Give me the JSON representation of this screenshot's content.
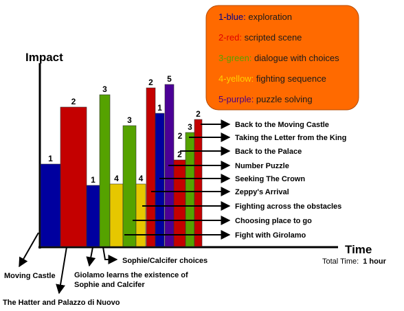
{
  "chart_data": {
    "type": "bar",
    "ylabel": "Impact",
    "xlabel": "Time",
    "total_time": {
      "label": "Total Time:",
      "value": "1 hour"
    },
    "ylim": [
      0,
      6
    ],
    "legend": {
      "placement": "top-right",
      "background": "#ff6a00",
      "items": [
        {
          "key": "1-blue:",
          "desc": " exploration",
          "color": "#00008b"
        },
        {
          "key": "2-red:",
          "desc": " scripted scene",
          "color": "#e00000"
        },
        {
          "key": "3-green:",
          "desc": " dialogue with choices",
          "color": "#5aa000"
        },
        {
          "key": "4-yellow:",
          "desc": " fighting sequence",
          "color": "#ffd000"
        },
        {
          "key": "5-purple:",
          "desc": " puzzle solving",
          "color": "#4b0082"
        }
      ]
    },
    "colors": {
      "1": "#00009f",
      "2": "#c40000",
      "3": "#55a200",
      "4": "#e6c700",
      "5": "#4b0096"
    },
    "events": [
      {
        "label": "Moving Castle",
        "value": 1
      },
      {
        "label": "The Hatter and Palazzo di Nuovo",
        "value": 2
      },
      {
        "label": "Giolamo learns the existence of Sophie and Calcifer",
        "value": 1
      },
      {
        "label": "Sophie/Calcifer choices",
        "value": 3
      },
      {
        "label": "",
        "value": 4
      },
      {
        "label": "Fight with Girolamo",
        "value": 3
      },
      {
        "label": "Choosing place to go",
        "value": 4
      },
      {
        "label": "Fighting across the obstacles",
        "value": 2
      },
      {
        "label": "Zeppy's Arrival",
        "value": 1
      },
      {
        "label": "Seeking The Crown",
        "value": 5
      },
      {
        "label": "Number Puzzle",
        "value": 2
      },
      {
        "label": "Back to the Palace",
        "value": 3
      },
      {
        "label": "Taking the Letter from the King",
        "value": 2
      },
      {
        "label": "Back to the Moving Castle",
        "value": 2
      }
    ]
  }
}
